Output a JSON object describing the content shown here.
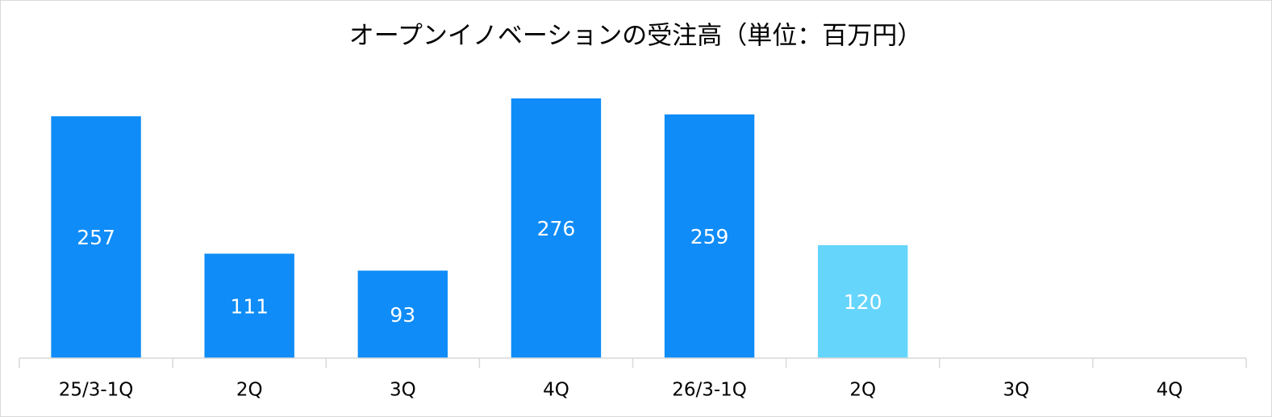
{
  "chart_data": {
    "type": "bar",
    "title": "オープンイノベーションの受注高（単位：百万円）",
    "categories": [
      "25/3-1Q",
      "2Q",
      "3Q",
      "4Q",
      "26/3-1Q",
      "2Q",
      "3Q",
      "4Q"
    ],
    "values": [
      257,
      111,
      93,
      276,
      259,
      120,
      null,
      null
    ],
    "colors": [
      "#0f8cf7",
      "#0f8cf7",
      "#0f8cf7",
      "#0f8cf7",
      "#0f8cf7",
      "#66d5fc",
      null,
      null
    ],
    "ylim": [
      0,
      300
    ],
    "grid": false
  }
}
